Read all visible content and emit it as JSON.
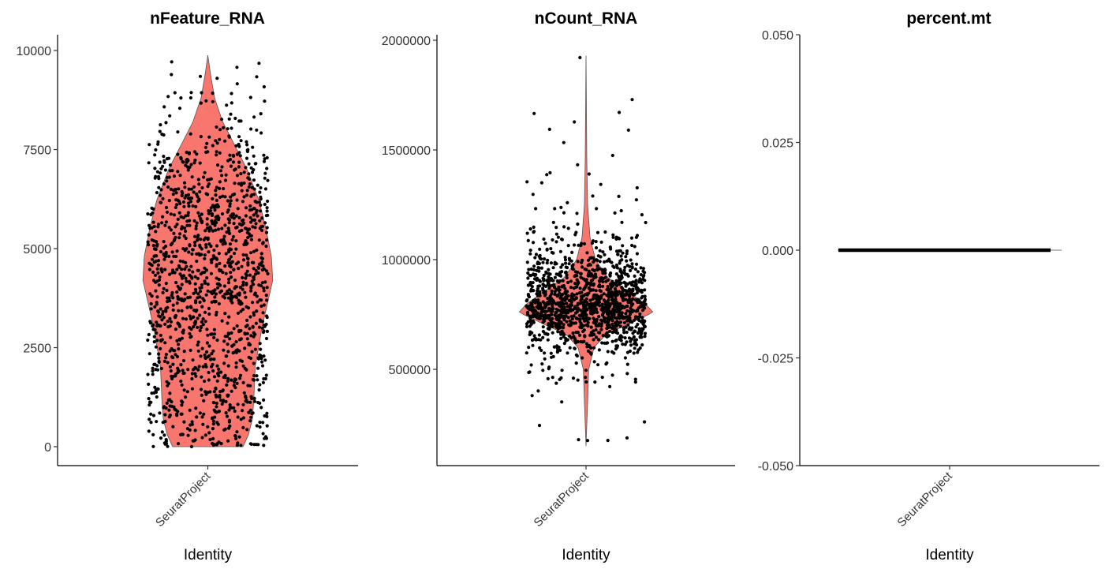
{
  "chart_data": [
    {
      "type": "violin",
      "title": "nFeature_RNA",
      "xlabel": "Identity",
      "categories": [
        "SeuratProject"
      ],
      "ylim": [
        -1000,
        10500
      ],
      "yticks": [
        0,
        2500,
        5000,
        7500,
        10000
      ],
      "ytick_labels": [
        "0",
        "2500",
        "5000",
        "7500",
        "10000"
      ],
      "grid": false,
      "fill_color": "#F8766D",
      "point_color": "#000000",
      "point_count": 1400,
      "jitter_width": 0.4,
      "violin_profile": [
        {
          "y": 0,
          "w": 0.26
        },
        {
          "y": 300,
          "w": 0.3
        },
        {
          "y": 700,
          "w": 0.33
        },
        {
          "y": 1200,
          "w": 0.34
        },
        {
          "y": 2000,
          "w": 0.35
        },
        {
          "y": 3000,
          "w": 0.4
        },
        {
          "y": 3600,
          "w": 0.44
        },
        {
          "y": 4200,
          "w": 0.48
        },
        {
          "y": 4800,
          "w": 0.47
        },
        {
          "y": 5500,
          "w": 0.43
        },
        {
          "y": 6200,
          "w": 0.38
        },
        {
          "y": 7000,
          "w": 0.29
        },
        {
          "y": 7600,
          "w": 0.2
        },
        {
          "y": 8200,
          "w": 0.11
        },
        {
          "y": 8800,
          "w": 0.05
        },
        {
          "y": 9400,
          "w": 0.02
        },
        {
          "y": 9880,
          "w": 0.0
        }
      ],
      "points_distribution": [
        {
          "y": 0,
          "w": 0.5
        },
        {
          "y": 300,
          "w": 0.45
        },
        {
          "y": 1000,
          "w": 0.55
        },
        {
          "y": 2000,
          "w": 0.6
        },
        {
          "y": 3000,
          "w": 0.8
        },
        {
          "y": 4000,
          "w": 0.95
        },
        {
          "y": 5000,
          "w": 0.9
        },
        {
          "y": 6000,
          "w": 0.8
        },
        {
          "y": 7000,
          "w": 0.55
        },
        {
          "y": 8000,
          "w": 0.2
        },
        {
          "y": 9000,
          "w": 0.06
        },
        {
          "y": 9900,
          "w": 0.01
        }
      ]
    },
    {
      "type": "violin",
      "title": "nCount_RNA",
      "xlabel": "Identity",
      "categories": [
        "SeuratProject"
      ],
      "ylim": [
        100000,
        2000000
      ],
      "yticks": [
        500000,
        1000000,
        1500000,
        2000000
      ],
      "ytick_labels": [
        "500000",
        "1000000",
        "1500000",
        "2000000"
      ],
      "grid": false,
      "fill_color": "#F8766D",
      "point_color": "#000000",
      "point_count": 1400,
      "jitter_width": 0.4,
      "violin_profile": [
        {
          "y": 150000,
          "w": 0.0
        },
        {
          "y": 250000,
          "w": 0.006
        },
        {
          "y": 350000,
          "w": 0.012
        },
        {
          "y": 500000,
          "w": 0.02
        },
        {
          "y": 600000,
          "w": 0.06
        },
        {
          "y": 660000,
          "w": 0.15
        },
        {
          "y": 710000,
          "w": 0.33
        },
        {
          "y": 760000,
          "w": 0.5
        },
        {
          "y": 800000,
          "w": 0.44
        },
        {
          "y": 860000,
          "w": 0.3
        },
        {
          "y": 920000,
          "w": 0.16
        },
        {
          "y": 1000000,
          "w": 0.07
        },
        {
          "y": 1100000,
          "w": 0.03
        },
        {
          "y": 1250000,
          "w": 0.012
        },
        {
          "y": 1450000,
          "w": 0.006
        },
        {
          "y": 1930000,
          "w": 0.0
        }
      ],
      "points_distribution": [
        {
          "y": 150000,
          "w": 0.002
        },
        {
          "y": 400000,
          "w": 0.01
        },
        {
          "y": 550000,
          "w": 0.06
        },
        {
          "y": 650000,
          "w": 0.3
        },
        {
          "y": 750000,
          "w": 1.0
        },
        {
          "y": 850000,
          "w": 0.7
        },
        {
          "y": 950000,
          "w": 0.32
        },
        {
          "y": 1050000,
          "w": 0.09
        },
        {
          "y": 1200000,
          "w": 0.03
        },
        {
          "y": 1400000,
          "w": 0.008
        },
        {
          "y": 1930000,
          "w": 0.001
        }
      ]
    },
    {
      "type": "violin",
      "title": "percent.mt",
      "xlabel": "Identity",
      "categories": [
        "SeuratProject"
      ],
      "ylim": [
        -0.05,
        0.05
      ],
      "yticks": [
        -0.05,
        -0.025,
        0,
        0.025,
        0.05
      ],
      "ytick_labels": [
        "-0.050",
        "-0.025",
        "0.000",
        "0.025",
        "0.050"
      ],
      "grid": false,
      "fill_color": "#F8766D",
      "point_color": "#000000",
      "constant_value": 0
    }
  ]
}
